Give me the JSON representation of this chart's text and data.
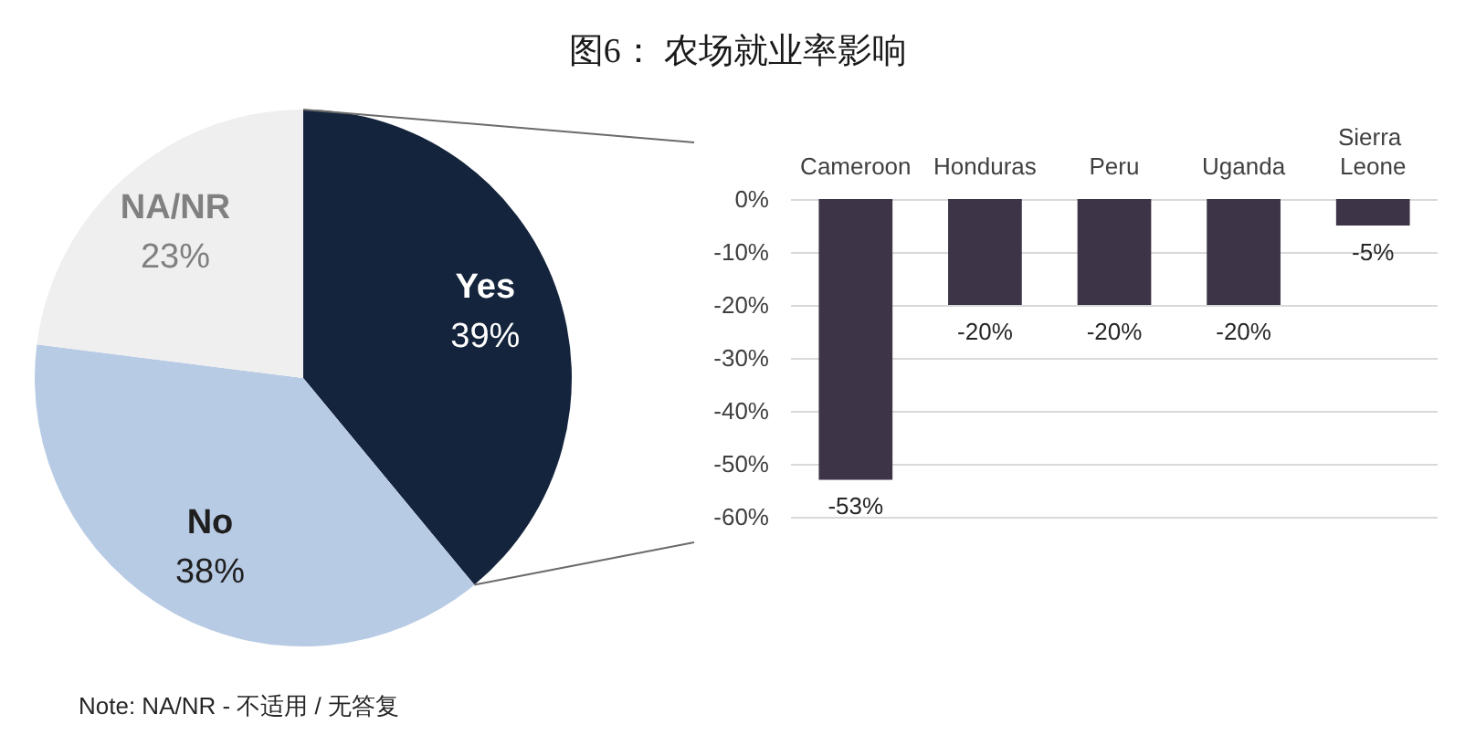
{
  "chart_data": [
    {
      "type": "pie",
      "title": "图6： 农场就业率影响",
      "categories": [
        "Yes",
        "No",
        "NA/NR"
      ],
      "values": [
        39,
        38,
        23
      ],
      "colors": [
        "#14243c",
        "#b8cbe4",
        "#efefef"
      ],
      "value_labels": [
        "39%",
        "38%",
        "23%"
      ],
      "annotations": [
        "Note: NA/NR - 不适用 / 无答复"
      ]
    },
    {
      "type": "bar",
      "categories": [
        "Cameroon",
        "Honduras",
        "Peru",
        "Uganda",
        "Sierra Leone"
      ],
      "values": [
        -53,
        -20,
        -20,
        -20,
        -5
      ],
      "color": "#3d3547",
      "ylim": [
        -60,
        0
      ],
      "yticks": [
        {
          "value": 0,
          "label": "0%"
        },
        {
          "value": -10,
          "label": "-10%"
        },
        {
          "value": -20,
          "label": "-20%"
        },
        {
          "value": -30,
          "label": "-30%"
        },
        {
          "value": -40,
          "label": "-40%"
        },
        {
          "value": -50,
          "label": "-50%"
        },
        {
          "value": -60,
          "label": "-60%"
        }
      ],
      "grid": "y",
      "value_labels": [
        "-53%",
        "-20%",
        "-20%",
        "-20%",
        "-5%"
      ]
    }
  ]
}
